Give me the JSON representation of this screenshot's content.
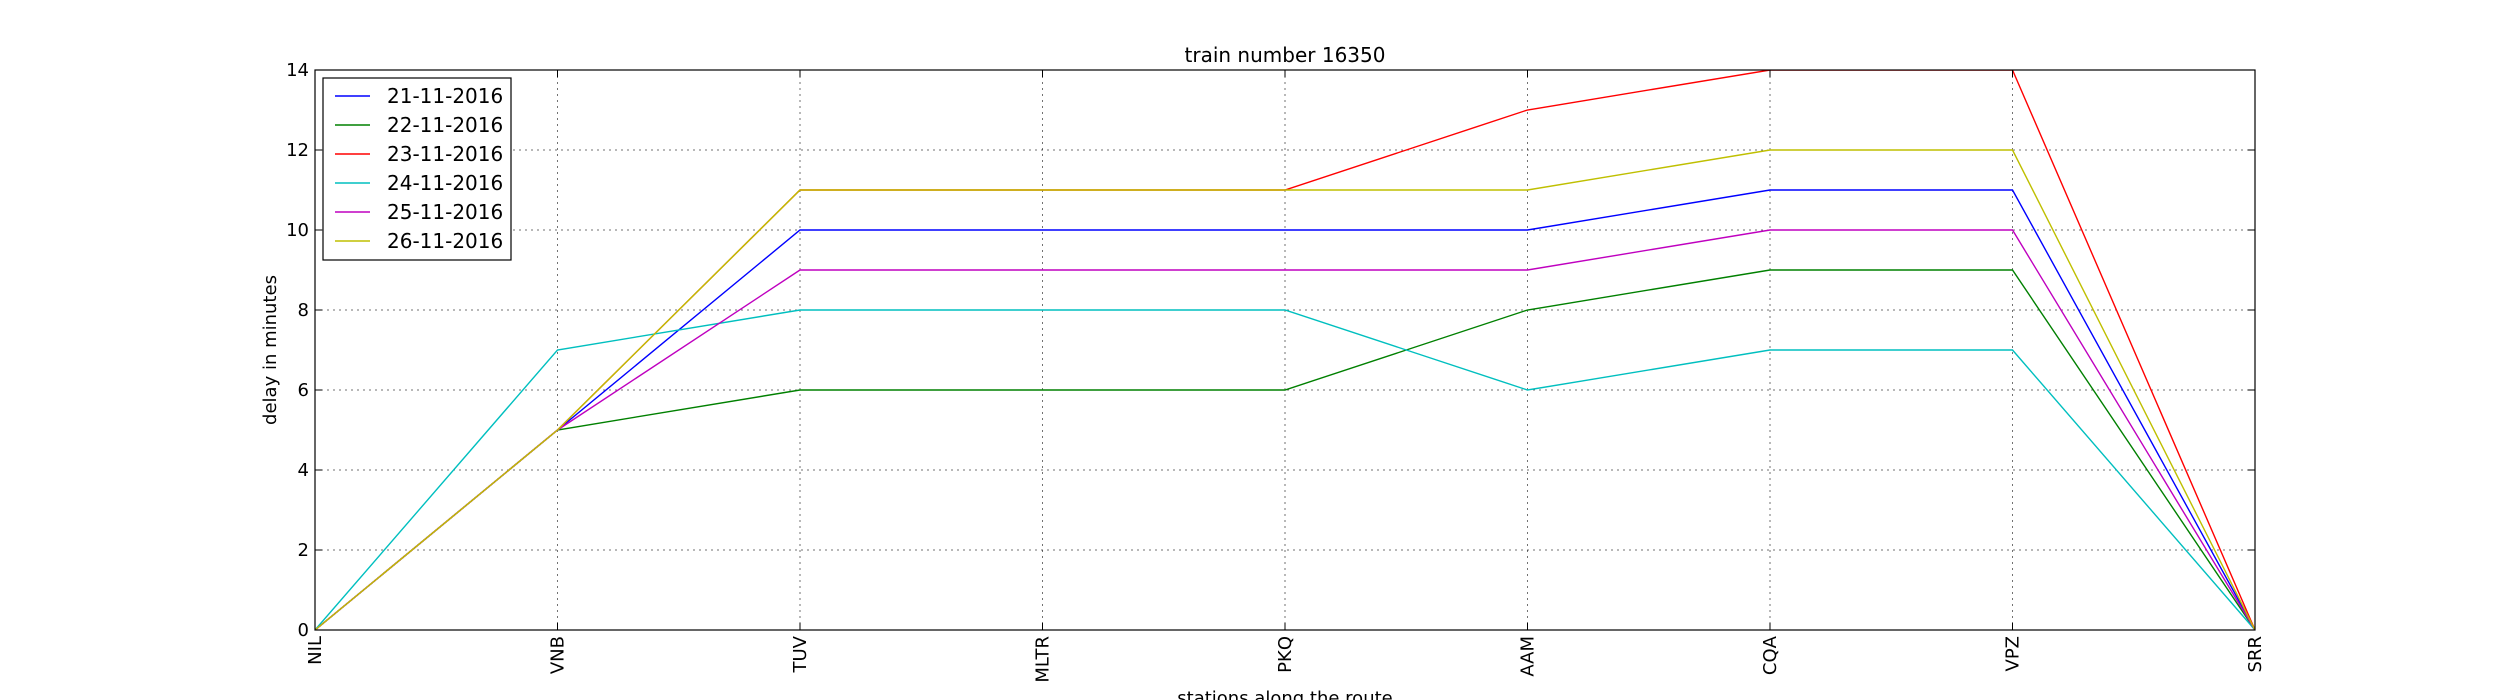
{
  "chart_data": {
    "type": "line",
    "title": "train number 16350",
    "xlabel": "stations along the route",
    "ylabel": "delay in minutes",
    "categories": [
      "NIL",
      "VNB",
      "TUV",
      "MLTR",
      "PKQ",
      "AAM",
      "CQA",
      "VPZ",
      "SRR"
    ],
    "ylim": [
      0,
      14
    ],
    "yticks": [
      0,
      2,
      4,
      6,
      8,
      10,
      12,
      14
    ],
    "grid": true,
    "legend_position": "top-left",
    "series": [
      {
        "name": "21-11-2016",
        "color": "#0000ff",
        "values": [
          0,
          5,
          10,
          10,
          10,
          10,
          11,
          11,
          0
        ]
      },
      {
        "name": "22-11-2016",
        "color": "#008000",
        "values": [
          0,
          5,
          6,
          6,
          6,
          8,
          9,
          9,
          0
        ]
      },
      {
        "name": "23-11-2016",
        "color": "#ff0000",
        "values": [
          0,
          5,
          11,
          11,
          11,
          13,
          14,
          14,
          0
        ]
      },
      {
        "name": "24-11-2016",
        "color": "#00bfbf",
        "values": [
          0,
          7,
          8,
          8,
          8,
          6,
          7,
          7,
          0
        ]
      },
      {
        "name": "25-11-2016",
        "color": "#bf00bf",
        "values": [
          0,
          5,
          9,
          9,
          9,
          9,
          10,
          10,
          0
        ]
      },
      {
        "name": "26-11-2016",
        "color": "#bfbf00",
        "values": [
          0,
          5,
          11,
          11,
          11,
          11,
          12,
          12,
          0
        ]
      }
    ]
  }
}
